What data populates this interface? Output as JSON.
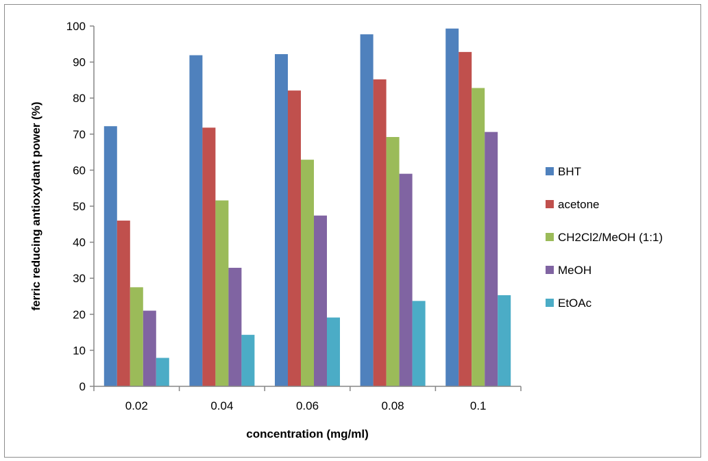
{
  "chart_data": {
    "type": "bar",
    "xlabel": "concentration (mg/ml)",
    "ylabel": "ferric reducing antioxydant power (%)",
    "ylim": [
      0,
      100
    ],
    "ytick_step": 10,
    "categories": [
      "0.02",
      "0.04",
      "0.06",
      "0.08",
      "0.1"
    ],
    "legend_position": "right",
    "series": [
      {
        "name": "BHT",
        "color": "#4f81bd",
        "values": [
          72.2,
          91.9,
          92.2,
          97.7,
          99.3
        ]
      },
      {
        "name": "acetone",
        "color": "#c0504d",
        "values": [
          46.0,
          71.8,
          82.1,
          85.2,
          92.8
        ]
      },
      {
        "name": "CH2Cl2/MeOH (1:1)",
        "color": "#9bbb59",
        "values": [
          27.5,
          51.6,
          62.9,
          69.2,
          82.8
        ]
      },
      {
        "name": "MeOH",
        "color": "#8064a2",
        "values": [
          21.0,
          32.9,
          47.4,
          59.0,
          70.6
        ]
      },
      {
        "name": "EtOAc",
        "color": "#4bacc6",
        "values": [
          7.9,
          14.3,
          19.1,
          23.7,
          25.3
        ]
      }
    ]
  }
}
